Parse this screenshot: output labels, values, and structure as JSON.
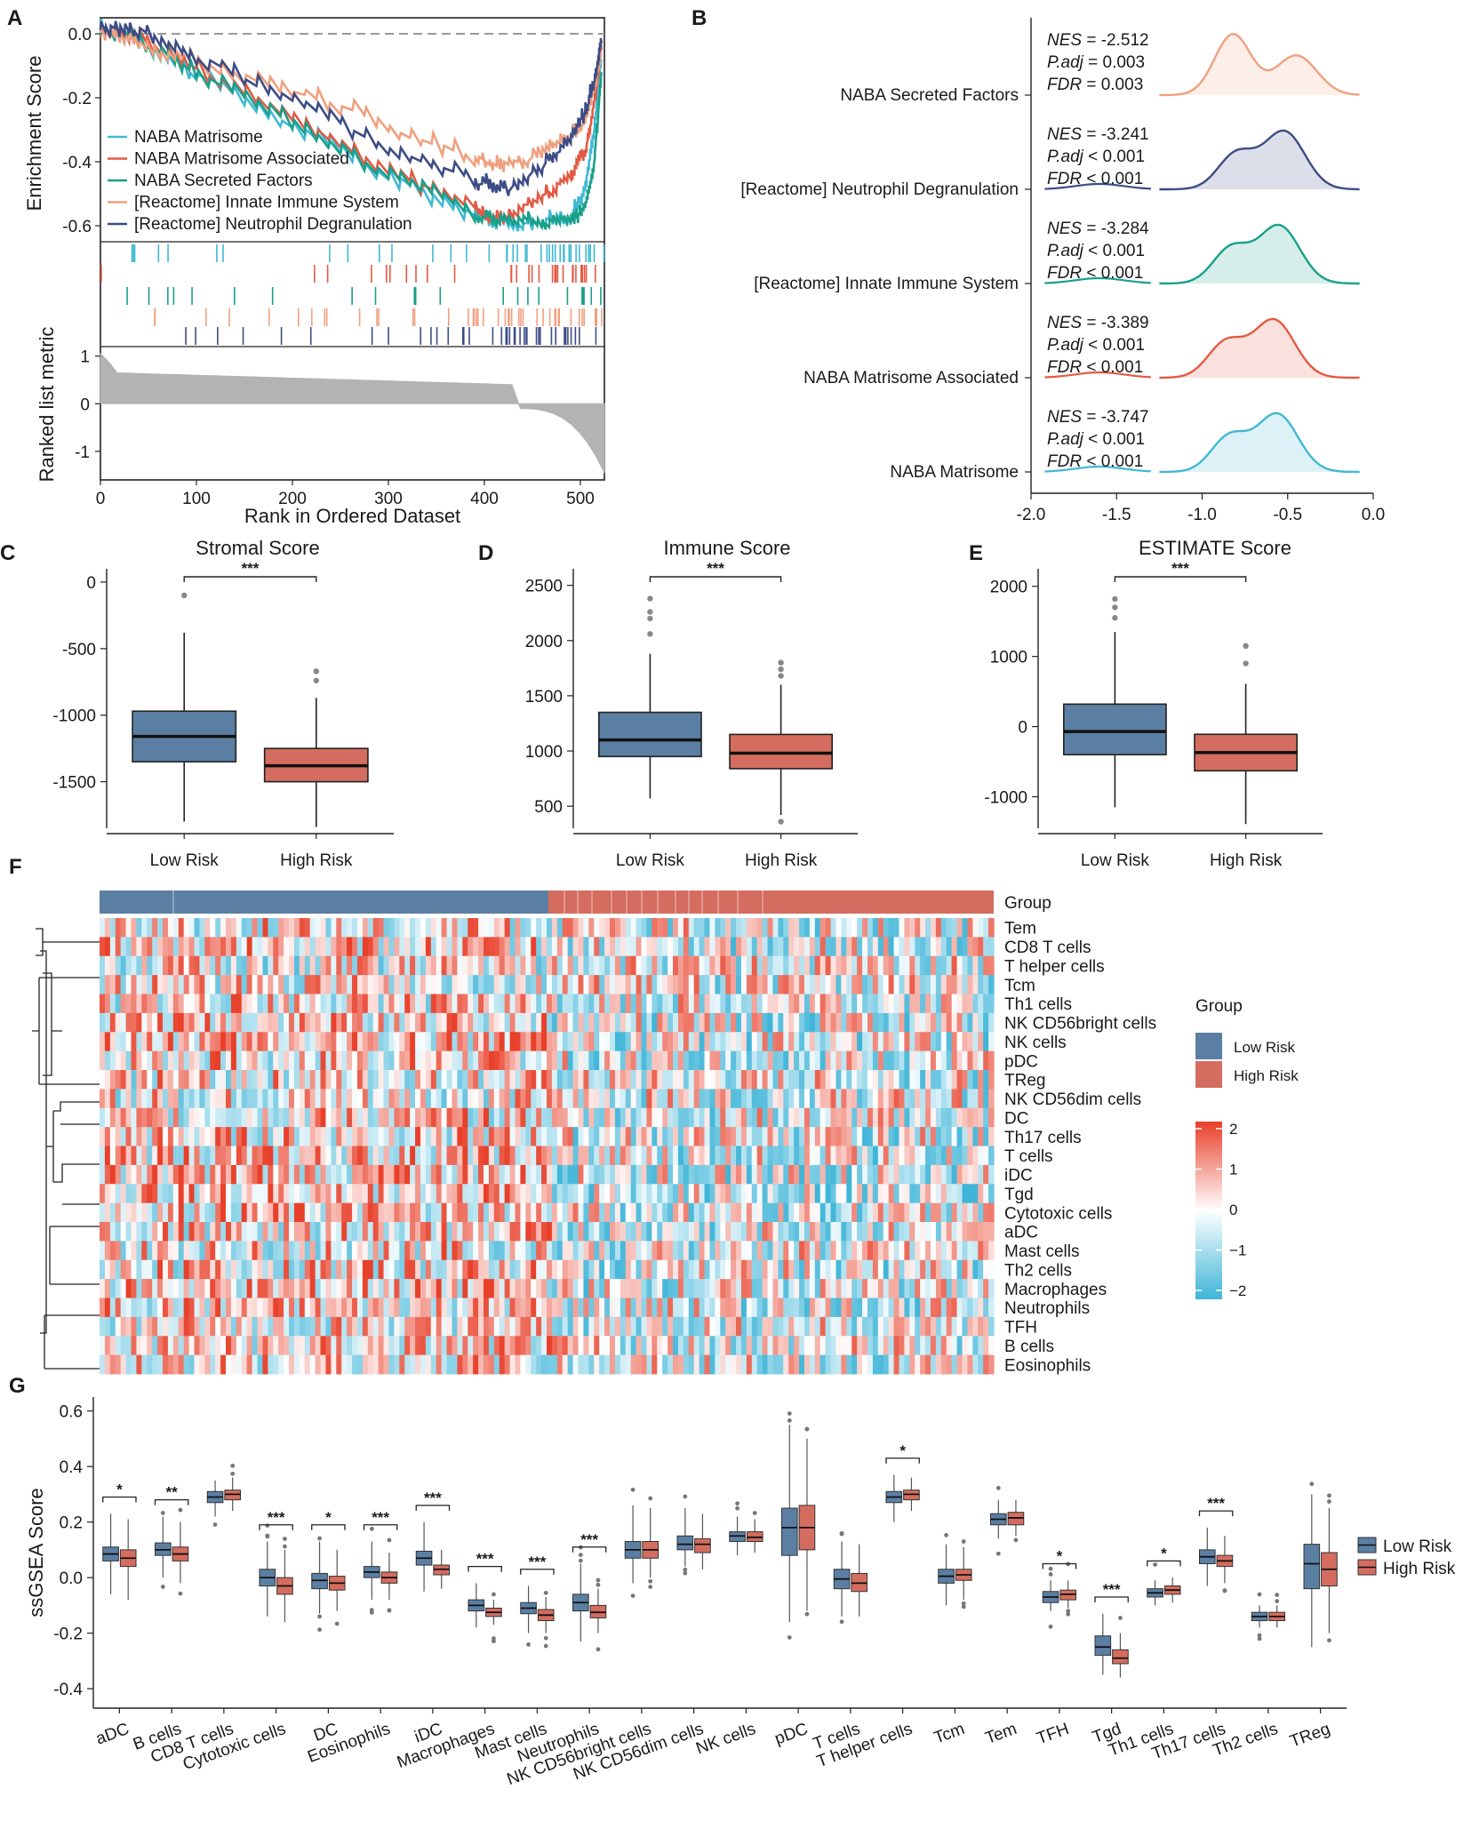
{
  "colors": {
    "low": "#5b7fa3",
    "high": "#d46d5f",
    "naba_matrisome": "#41b9d3",
    "naba_assoc": "#e35a44",
    "naba_secreted": "#19a08a",
    "innate": "#f0a07f",
    "neutro": "#3c4c85",
    "heat_high": "#e8402a",
    "heat_mid": "#ffffff",
    "heat_low": "#3fb5d8"
  },
  "panels": {
    "A": "A",
    "B": "B",
    "C": "C",
    "D": "D",
    "E": "E",
    "F": "F",
    "G": "G"
  },
  "chart_data": [
    {
      "id": "A",
      "type": "line",
      "ylabel": "Enrichment Score",
      "ylabel2": "Ranked list metric",
      "xlabel": "Rank in Ordered Dataset",
      "xlim": [
        0,
        525
      ],
      "ylim": [
        -0.65,
        0.05
      ],
      "ylim2": [
        -1.6,
        1.2
      ],
      "xticks": [
        "0",
        "100",
        "200",
        "300",
        "400",
        "500"
      ],
      "yticks": [
        "0.0",
        "-0.2",
        "-0.4",
        "-0.6"
      ],
      "yticks2": [
        "1",
        "0",
        "-1"
      ],
      "series": [
        {
          "name": "NABA Matrisome",
          "x": [
            0,
            40,
            100,
            200,
            300,
            390,
            420,
            460,
            490,
            505,
            515,
            522
          ],
          "values": [
            0,
            -0.03,
            -0.14,
            -0.3,
            -0.46,
            -0.58,
            -0.6,
            -0.6,
            -0.58,
            -0.5,
            -0.3,
            -0.08
          ]
        },
        {
          "name": "NABA Matrisome Associated",
          "x": [
            0,
            40,
            100,
            200,
            300,
            390,
            420,
            460,
            490,
            505,
            515,
            522
          ],
          "values": [
            0,
            -0.02,
            -0.12,
            -0.27,
            -0.44,
            -0.56,
            -0.59,
            -0.52,
            -0.45,
            -0.38,
            -0.22,
            -0.05
          ]
        },
        {
          "name": "NABA Secreted Factors",
          "x": [
            0,
            40,
            100,
            200,
            300,
            390,
            420,
            460,
            490,
            505,
            515,
            522
          ],
          "values": [
            0,
            -0.03,
            -0.13,
            -0.29,
            -0.45,
            -0.57,
            -0.6,
            -0.6,
            -0.6,
            -0.56,
            -0.4,
            -0.12
          ]
        },
        {
          "name": "[Reactome] Innate Immune System",
          "x": [
            0,
            40,
            100,
            200,
            300,
            390,
            420,
            460,
            490,
            505,
            515,
            522
          ],
          "values": [
            0,
            -0.04,
            -0.1,
            -0.18,
            -0.3,
            -0.4,
            -0.43,
            -0.38,
            -0.33,
            -0.28,
            -0.18,
            -0.05
          ]
        },
        {
          "name": "[Reactome] Neutrophil Degranulation",
          "x": [
            0,
            40,
            100,
            200,
            300,
            390,
            420,
            460,
            490,
            505,
            515,
            522
          ],
          "values": [
            0,
            0.0,
            -0.08,
            -0.22,
            -0.37,
            -0.47,
            -0.5,
            -0.43,
            -0.34,
            -0.26,
            -0.15,
            -0.03
          ]
        }
      ]
    },
    {
      "id": "B",
      "type": "area",
      "xticks": [
        "-2.0",
        "-1.5",
        "-1.0",
        "-0.5",
        "0.0"
      ],
      "xlim": [
        -2.0,
        0.0
      ],
      "series": [
        {
          "name": "NABA Secreted Factors",
          "nes": "-2.512",
          "padj_op": "=",
          "padj": "0.003",
          "fdr_op": "=",
          "fdr": "0.003",
          "peak": -0.82
        },
        {
          "name": "[Reactome] Neutrophil Degranulation",
          "nes": "-3.241",
          "padj_op": "<",
          "padj": "0.001",
          "fdr_op": "<",
          "fdr": "0.001",
          "peak": -0.52
        },
        {
          "name": "[Reactome] Innate Immune System",
          "nes": "-3.284",
          "padj_op": "<",
          "padj": "0.001",
          "fdr_op": "<",
          "fdr": "0.001",
          "peak": -0.55
        },
        {
          "name": "NABA Matrisome Associated",
          "nes": "-3.389",
          "padj_op": "<",
          "padj": "0.001",
          "fdr_op": "<",
          "fdr": "0.001",
          "peak": -0.58
        },
        {
          "name": "NABA Matrisome",
          "nes": "-3.747",
          "padj_op": "<",
          "padj": "0.001",
          "fdr_op": "<",
          "fdr": "0.001",
          "peak": -0.56
        }
      ],
      "stat_labels": {
        "nes": "NES",
        "padj": "P.adj",
        "fdr": "FDR"
      }
    },
    {
      "id": "C",
      "type": "box",
      "title": "Stromal Score",
      "categories": [
        "Low Risk",
        "High Risk"
      ],
      "ylim": [
        -1850,
        100
      ],
      "yticks": [
        0,
        -500,
        -1000,
        -1500
      ],
      "sig": "***",
      "boxes": [
        {
          "min": -1800,
          "q1": -1350,
          "median": -1160,
          "q3": -970,
          "max": -380,
          "outliers": [
            -100
          ]
        },
        {
          "min": -1840,
          "q1": -1500,
          "median": -1380,
          "q3": -1250,
          "max": -870,
          "outliers": [
            -670,
            -740
          ]
        }
      ]
    },
    {
      "id": "D",
      "type": "box",
      "title": "Immune Score",
      "categories": [
        "Low Risk",
        "High Risk"
      ],
      "ylim": [
        300,
        2650
      ],
      "yticks": [
        2500,
        2000,
        1500,
        1000,
        500
      ],
      "sig": "***",
      "boxes": [
        {
          "min": 570,
          "q1": 950,
          "median": 1100,
          "q3": 1350,
          "max": 1880,
          "outliers": [
            2060,
            2200,
            2260,
            2380
          ]
        },
        {
          "min": 420,
          "q1": 840,
          "median": 980,
          "q3": 1150,
          "max": 1600,
          "outliers": [
            1680,
            1740,
            1800,
            360
          ]
        }
      ]
    },
    {
      "id": "E",
      "type": "box",
      "title": "ESTIMATE Score",
      "categories": [
        "Low Risk",
        "High Risk"
      ],
      "ylim": [
        -1450,
        2250
      ],
      "yticks": [
        2000,
        1000,
        0,
        -1000
      ],
      "sig": "***",
      "boxes": [
        {
          "min": -1150,
          "q1": -400,
          "median": -70,
          "q3": 320,
          "max": 1350,
          "outliers": [
            1550,
            1700,
            1820
          ]
        },
        {
          "min": -1390,
          "q1": -630,
          "median": -370,
          "q3": -110,
          "max": 610,
          "outliers": [
            900,
            1150
          ]
        }
      ]
    },
    {
      "id": "F",
      "type": "heatmap",
      "group_label": "Group",
      "legend_title": "Group",
      "groups": [
        "Low Risk",
        "High Risk"
      ],
      "scale_ticks": [
        "2",
        "1",
        "0",
        "−1",
        "−2"
      ],
      "rows": [
        "Tem",
        "CD8 T cells",
        "T helper cells",
        "Tcm",
        "Th1 cells",
        "NK CD56bright cells",
        "NK cells",
        "pDC",
        "TReg",
        "NK CD56dim cells",
        "DC",
        "Th17 cells",
        "T cells",
        "iDC",
        "Tgd",
        "Cytotoxic cells",
        "aDC",
        "Mast cells",
        "Th2 cells",
        "Macrophages",
        "Neutrophils",
        "TFH",
        "B cells",
        "Eosinophils"
      ]
    },
    {
      "id": "G",
      "type": "box",
      "ylabel": "ssGSEA Score",
      "ylim": [
        -0.47,
        0.65
      ],
      "yticks": [
        "0.6",
        "0.4",
        "0.2",
        "0.0",
        "-0.2",
        "-0.4"
      ],
      "legend": [
        "Low Risk",
        "High Risk"
      ],
      "categories": [
        "aDC",
        "B cells",
        "CD8 T cells",
        "Cytotoxic cells",
        "DC",
        "Eosinophils",
        "iDC",
        "Macrophages",
        "Mast cells",
        "Neutrophils",
        "NK CD56bright cells",
        "NK CD56dim cells",
        "NK cells",
        "pDC",
        "T cells",
        "T helper cells",
        "Tcm",
        "Tem",
        "TFH",
        "Tgd",
        "Th1 cells",
        "Th17 cells",
        "Th2 cells",
        "TReg"
      ],
      "sig": [
        "*",
        "**",
        "",
        "***",
        "*",
        "***",
        "***",
        "***",
        "***",
        "***",
        "",
        "",
        "",
        "",
        "",
        "*",
        "",
        "",
        "*",
        "***",
        "*",
        "***",
        "",
        ""
      ],
      "low": [
        [
          0.085,
          0.06,
          0.11,
          -0.06,
          0.23
        ],
        [
          0.1,
          0.08,
          0.125,
          0.0,
          0.22
        ],
        [
          0.29,
          0.27,
          0.31,
          0.22,
          0.35
        ],
        [
          0.0,
          -0.03,
          0.03,
          -0.14,
          0.13
        ],
        [
          -0.01,
          -0.04,
          0.015,
          -0.13,
          0.13
        ],
        [
          0.02,
          0.0,
          0.04,
          -0.08,
          0.13
        ],
        [
          0.07,
          0.045,
          0.095,
          -0.05,
          0.2
        ],
        [
          -0.1,
          -0.12,
          -0.08,
          -0.18,
          -0.02
        ],
        [
          -0.11,
          -0.13,
          -0.09,
          -0.2,
          -0.03
        ],
        [
          -0.09,
          -0.12,
          -0.06,
          -0.23,
          0.05
        ],
        [
          0.1,
          0.07,
          0.13,
          -0.02,
          0.26
        ],
        [
          0.12,
          0.1,
          0.15,
          0.04,
          0.25
        ],
        [
          0.15,
          0.13,
          0.165,
          0.08,
          0.22
        ],
        [
          0.18,
          0.08,
          0.25,
          -0.16,
          0.55
        ],
        [
          -0.005,
          -0.04,
          0.03,
          -0.14,
          0.13
        ],
        [
          0.29,
          0.27,
          0.31,
          0.2,
          0.37
        ],
        [
          0.005,
          -0.02,
          0.03,
          -0.1,
          0.12
        ],
        [
          0.21,
          0.19,
          0.23,
          0.14,
          0.28
        ],
        [
          -0.07,
          -0.09,
          -0.05,
          -0.12,
          -0.01
        ],
        [
          -0.25,
          -0.28,
          -0.21,
          -0.35,
          -0.13
        ],
        [
          -0.055,
          -0.07,
          -0.04,
          -0.1,
          -0.01
        ],
        [
          0.075,
          0.05,
          0.1,
          -0.03,
          0.18
        ],
        [
          -0.14,
          -0.155,
          -0.125,
          -0.18,
          -0.1
        ],
        [
          0.05,
          -0.04,
          0.12,
          -0.25,
          0.3
        ]
      ],
      "high": [
        [
          0.07,
          0.04,
          0.1,
          -0.08,
          0.21
        ],
        [
          0.085,
          0.06,
          0.11,
          -0.02,
          0.2
        ],
        [
          0.3,
          0.28,
          0.315,
          0.24,
          0.36
        ],
        [
          -0.03,
          -0.06,
          0.0,
          -0.16,
          0.1
        ],
        [
          -0.02,
          -0.045,
          0.005,
          -0.12,
          0.1
        ],
        [
          0.0,
          -0.02,
          0.02,
          -0.08,
          0.09
        ],
        [
          0.03,
          0.01,
          0.045,
          -0.04,
          0.1
        ],
        [
          -0.125,
          -0.14,
          -0.11,
          -0.17,
          -0.08
        ],
        [
          -0.135,
          -0.155,
          -0.115,
          -0.2,
          -0.07
        ],
        [
          -0.125,
          -0.145,
          -0.1,
          -0.2,
          -0.04
        ],
        [
          0.1,
          0.07,
          0.13,
          0.0,
          0.25
        ],
        [
          0.12,
          0.09,
          0.14,
          0.03,
          0.23
        ],
        [
          0.145,
          0.13,
          0.165,
          0.09,
          0.21
        ],
        [
          0.18,
          0.1,
          0.26,
          -0.12,
          0.5
        ],
        [
          -0.02,
          -0.05,
          0.015,
          -0.14,
          0.12
        ],
        [
          0.3,
          0.28,
          0.315,
          0.24,
          0.36
        ],
        [
          0.01,
          -0.01,
          0.03,
          -0.08,
          0.11
        ],
        [
          0.215,
          0.19,
          0.235,
          0.15,
          0.28
        ],
        [
          -0.06,
          -0.08,
          -0.045,
          -0.11,
          -0.01
        ],
        [
          -0.29,
          -0.31,
          -0.26,
          -0.36,
          -0.2
        ],
        [
          -0.045,
          -0.06,
          -0.03,
          -0.09,
          0.0
        ],
        [
          0.06,
          0.04,
          0.08,
          -0.02,
          0.15
        ],
        [
          -0.14,
          -0.155,
          -0.125,
          -0.18,
          -0.1
        ],
        [
          0.03,
          -0.03,
          0.09,
          -0.2,
          0.25
        ]
      ]
    }
  ]
}
